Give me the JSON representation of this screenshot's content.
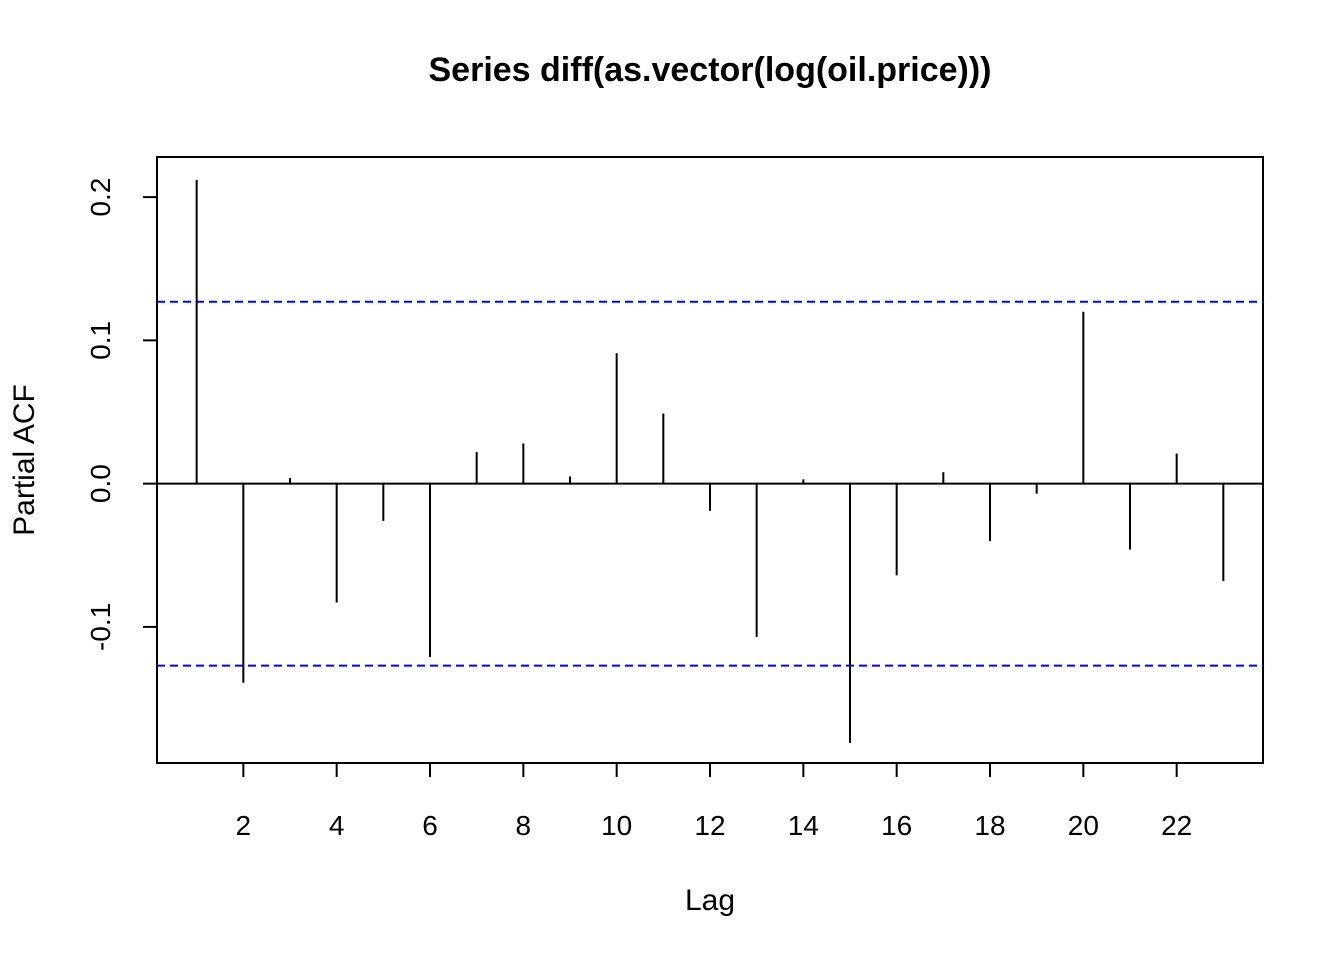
{
  "chart_data": {
    "type": "bar",
    "title": "Series  diff(as.vector(log(oil.price)))",
    "xlabel": "Lag",
    "ylabel": "Partial ACF",
    "x": [
      1,
      2,
      3,
      4,
      5,
      6,
      7,
      8,
      9,
      10,
      11,
      12,
      13,
      14,
      15,
      16,
      17,
      18,
      19,
      20,
      21,
      22,
      23
    ],
    "values": [
      0.212,
      -0.139,
      0.004,
      -0.083,
      -0.026,
      -0.121,
      0.022,
      0.028,
      0.005,
      0.091,
      0.049,
      -0.019,
      -0.107,
      0.003,
      -0.181,
      -0.064,
      0.008,
      -0.04,
      -0.007,
      0.12,
      -0.046,
      0.021,
      -0.068
    ],
    "confidence_limits": [
      0.127,
      -0.127
    ],
    "xlim": [
      0.15,
      23.85
    ],
    "ylim": [
      -0.195,
      0.228
    ],
    "x_ticks": [
      2,
      4,
      6,
      8,
      10,
      12,
      14,
      16,
      18,
      20,
      22
    ],
    "x_tick_labels": [
      "2",
      "4",
      "6",
      "8",
      "10",
      "12",
      "14",
      "16",
      "18",
      "20",
      "22"
    ],
    "y_ticks": [
      -0.1,
      0.0,
      0.1,
      0.2
    ],
    "y_tick_labels": [
      "-0.1",
      "0.0",
      "0.1",
      "0.2"
    ],
    "grid": false,
    "colors": {
      "bars": "#000000",
      "zero_line": "#000000",
      "confidence_lines": "#0000ff",
      "frame": "#000000"
    }
  }
}
